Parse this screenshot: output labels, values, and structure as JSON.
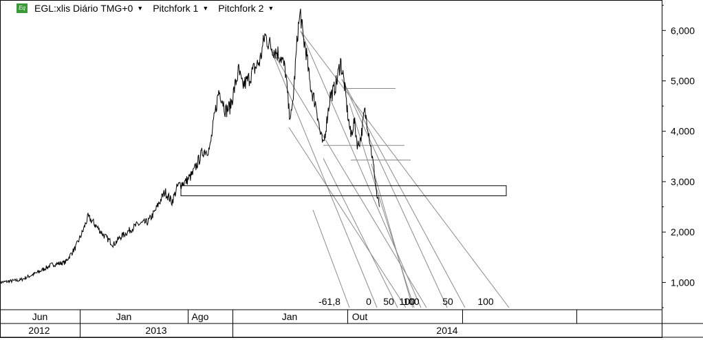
{
  "legend": {
    "icon_text": "Eq",
    "items": [
      {
        "label": "EGL:xlis Diário TMG+0"
      },
      {
        "label": "Pitchfork 1"
      },
      {
        "label": "Pitchfork 2"
      }
    ]
  },
  "chart_data": {
    "type": "line",
    "y_ticks": [
      "1,000",
      "2,000",
      "3,000",
      "4,000",
      "5,000",
      "6,000"
    ],
    "y_tick_values": [
      1000,
      2000,
      3000,
      4000,
      5000,
      6000
    ],
    "ylim": [
      500,
      6550
    ],
    "x_month_labels": [
      "Jun",
      "Jan",
      "Ago",
      "Jan",
      "Out"
    ],
    "x_year_labels": [
      "2012",
      "2013",
      "2014"
    ],
    "fib_labels": [
      "-61,8",
      "0",
      "50",
      "100",
      "100",
      "50",
      "100"
    ],
    "price_series": {
      "name": "EGL:xlis Diário TMG+0",
      "x": [
        0,
        30,
        55,
        75,
        95,
        110,
        120,
        128,
        135,
        150,
        165,
        175,
        185,
        200,
        215,
        225,
        232,
        240,
        250,
        258,
        262,
        270,
        280,
        288,
        295,
        305,
        312,
        318,
        322,
        328,
        335,
        340,
        347,
        352,
        360,
        368,
        378,
        385,
        393,
        400,
        408,
        415,
        420,
        424,
        428,
        433,
        437,
        440,
        445,
        450,
        455,
        460,
        465,
        470,
        475,
        480,
        485,
        490,
        495,
        500,
        505,
        510,
        515,
        520,
        525,
        530,
        535,
        540,
        545,
        548,
        552
      ],
      "y": [
        1000,
        1050,
        1200,
        1350,
        1400,
        1700,
        2000,
        2300,
        2200,
        1950,
        1750,
        1900,
        2000,
        2150,
        2200,
        2400,
        2600,
        2800,
        2600,
        2900,
        2950,
        3000,
        3150,
        3400,
        3600,
        3650,
        4300,
        4800,
        4700,
        4400,
        4500,
        4800,
        5200,
        4900,
        5000,
        5200,
        5400,
        5900,
        5700,
        5600,
        5500,
        5200,
        4400,
        4300,
        5000,
        6000,
        6350,
        5900,
        5600,
        5000,
        4700,
        4500,
        4000,
        3700,
        4200,
        4700,
        4800,
        5000,
        5400,
        5000,
        4400,
        3900,
        4200,
        3700,
        3900,
        4400,
        4100,
        3600,
        3100,
        2700,
        2500
      ]
    },
    "levels": [
      4850,
      3720,
      3430,
      2920,
      2720
    ],
    "grid": false,
    "legend_position": "top-left"
  },
  "colors": {
    "price": "#000000",
    "lines": "#8a8a8a",
    "border": "#000000",
    "icon": "#3a9a3a"
  }
}
